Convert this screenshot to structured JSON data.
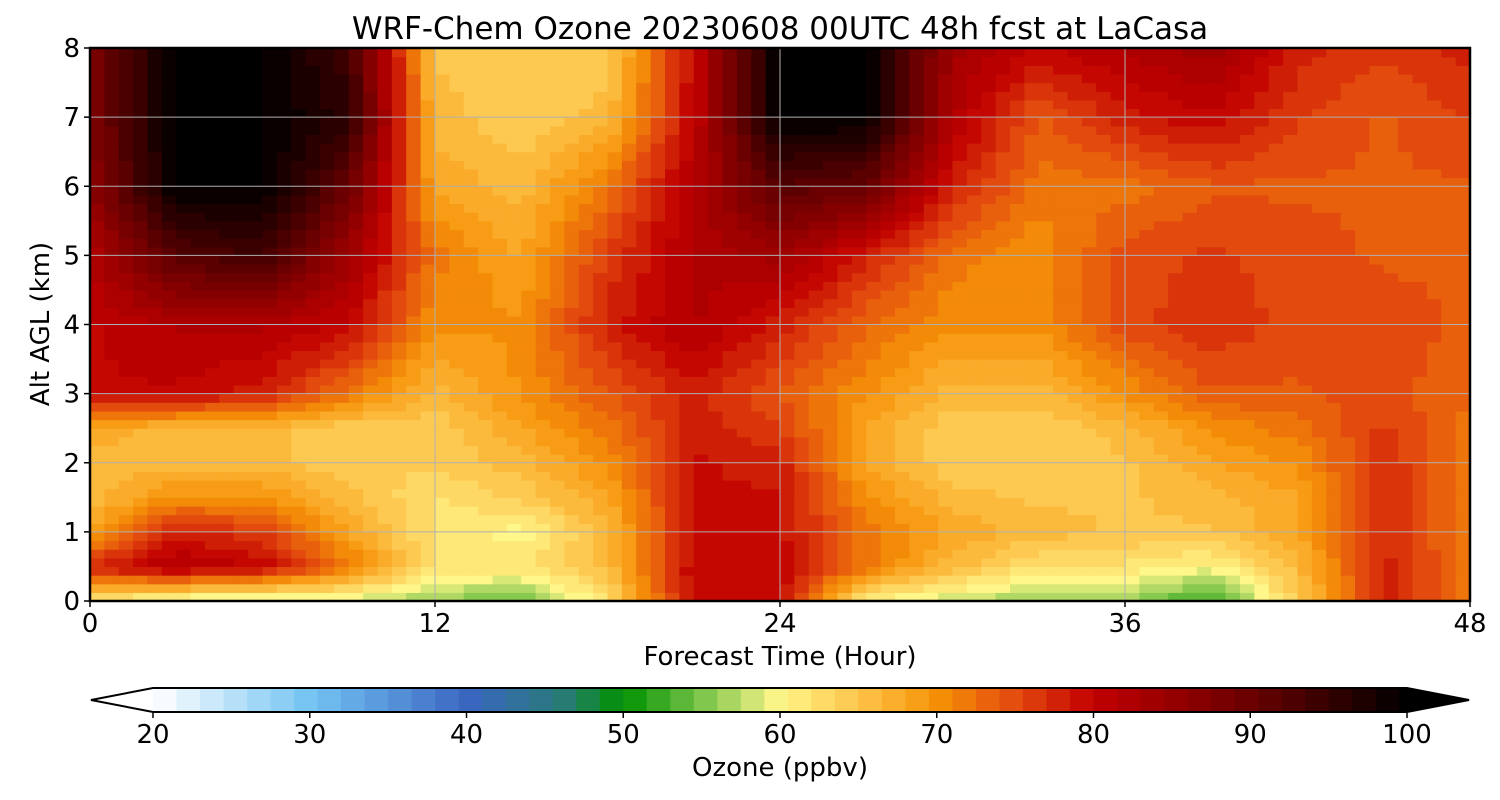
{
  "chart_data": {
    "type": "heatmap",
    "title": "WRF-Chem Ozone  20230608 00UTC 48h fcst at LaCasa",
    "xlabel": "Forecast Time (Hour)",
    "ylabel": "Alt AGL (km)",
    "xlim": [
      0,
      48
    ],
    "ylim": [
      0,
      8
    ],
    "x_ticks": [
      0,
      12,
      24,
      36,
      48
    ],
    "y_ticks": [
      0,
      1,
      2,
      3,
      4,
      5,
      6,
      7,
      8
    ],
    "grid": true,
    "x": [
      0,
      3,
      6,
      9,
      12,
      15,
      18,
      21,
      24,
      27,
      30,
      33,
      36,
      39,
      42,
      45,
      48
    ],
    "y": [
      0,
      0.5,
      1,
      1.5,
      2,
      2.5,
      3,
      4,
      5,
      6,
      7,
      8
    ],
    "z": [
      [
        62,
        58,
        57,
        58,
        56,
        54,
        62,
        80,
        80,
        60,
        58,
        56,
        56,
        52,
        64,
        78,
        72
      ],
      [
        78,
        82,
        80,
        72,
        62,
        62,
        66,
        80,
        80,
        72,
        66,
        62,
        62,
        60,
        66,
        78,
        72
      ],
      [
        68,
        78,
        76,
        68,
        62,
        60,
        66,
        79,
        79,
        72,
        68,
        66,
        65,
        65,
        68,
        77,
        72
      ],
      [
        66,
        70,
        70,
        66,
        62,
        64,
        68,
        79,
        79,
        70,
        66,
        65,
        65,
        66,
        68,
        77,
        72
      ],
      [
        66,
        66,
        66,
        64,
        64,
        66,
        70,
        79,
        78,
        68,
        64,
        64,
        65,
        68,
        70,
        77,
        72
      ],
      [
        68,
        66,
        66,
        64,
        64,
        68,
        72,
        78,
        76,
        68,
        64,
        64,
        66,
        70,
        72,
        76,
        72
      ],
      [
        80,
        80,
        78,
        72,
        66,
        70,
        74,
        78,
        74,
        70,
        66,
        66,
        70,
        74,
        74,
        75,
        73
      ],
      [
        80,
        82,
        82,
        80,
        70,
        70,
        78,
        82,
        78,
        73,
        70,
        70,
        75,
        77,
        75,
        75,
        74
      ],
      [
        82,
        92,
        94,
        84,
        72,
        68,
        76,
        82,
        84,
        78,
        72,
        70,
        75,
        76,
        75,
        74,
        74
      ],
      [
        86,
        100,
        100,
        90,
        68,
        66,
        72,
        82,
        92,
        90,
        78,
        72,
        72,
        74,
        74,
        74,
        74
      ],
      [
        88,
        100,
        100,
        96,
        66,
        64,
        66,
        80,
        100,
        100,
        82,
        74,
        78,
        80,
        76,
        74,
        76
      ],
      [
        88,
        100,
        100,
        94,
        65,
        64,
        64,
        80,
        100,
        100,
        84,
        80,
        82,
        84,
        78,
        76,
        78
      ]
    ],
    "colorbar": {
      "label": "Ozone  (ppbv)",
      "min": 20,
      "max": 100,
      "ticks": [
        20,
        30,
        40,
        50,
        60,
        70,
        80,
        90,
        100
      ],
      "extend": "both",
      "stops": [
        {
          "v": 20,
          "color": "#ffffff"
        },
        {
          "v": 30,
          "color": "#74c4f2"
        },
        {
          "v": 40,
          "color": "#3a66c2"
        },
        {
          "v": 46,
          "color": "#2a7a7a"
        },
        {
          "v": 50,
          "color": "#009100"
        },
        {
          "v": 55,
          "color": "#7bc44a"
        },
        {
          "v": 60,
          "color": "#fff78a"
        },
        {
          "v": 65,
          "color": "#fdc44a"
        },
        {
          "v": 70,
          "color": "#f69207"
        },
        {
          "v": 75,
          "color": "#e34a0e"
        },
        {
          "v": 80,
          "color": "#c20000"
        },
        {
          "v": 90,
          "color": "#6a0000"
        },
        {
          "v": 100,
          "color": "#000000"
        }
      ]
    }
  }
}
